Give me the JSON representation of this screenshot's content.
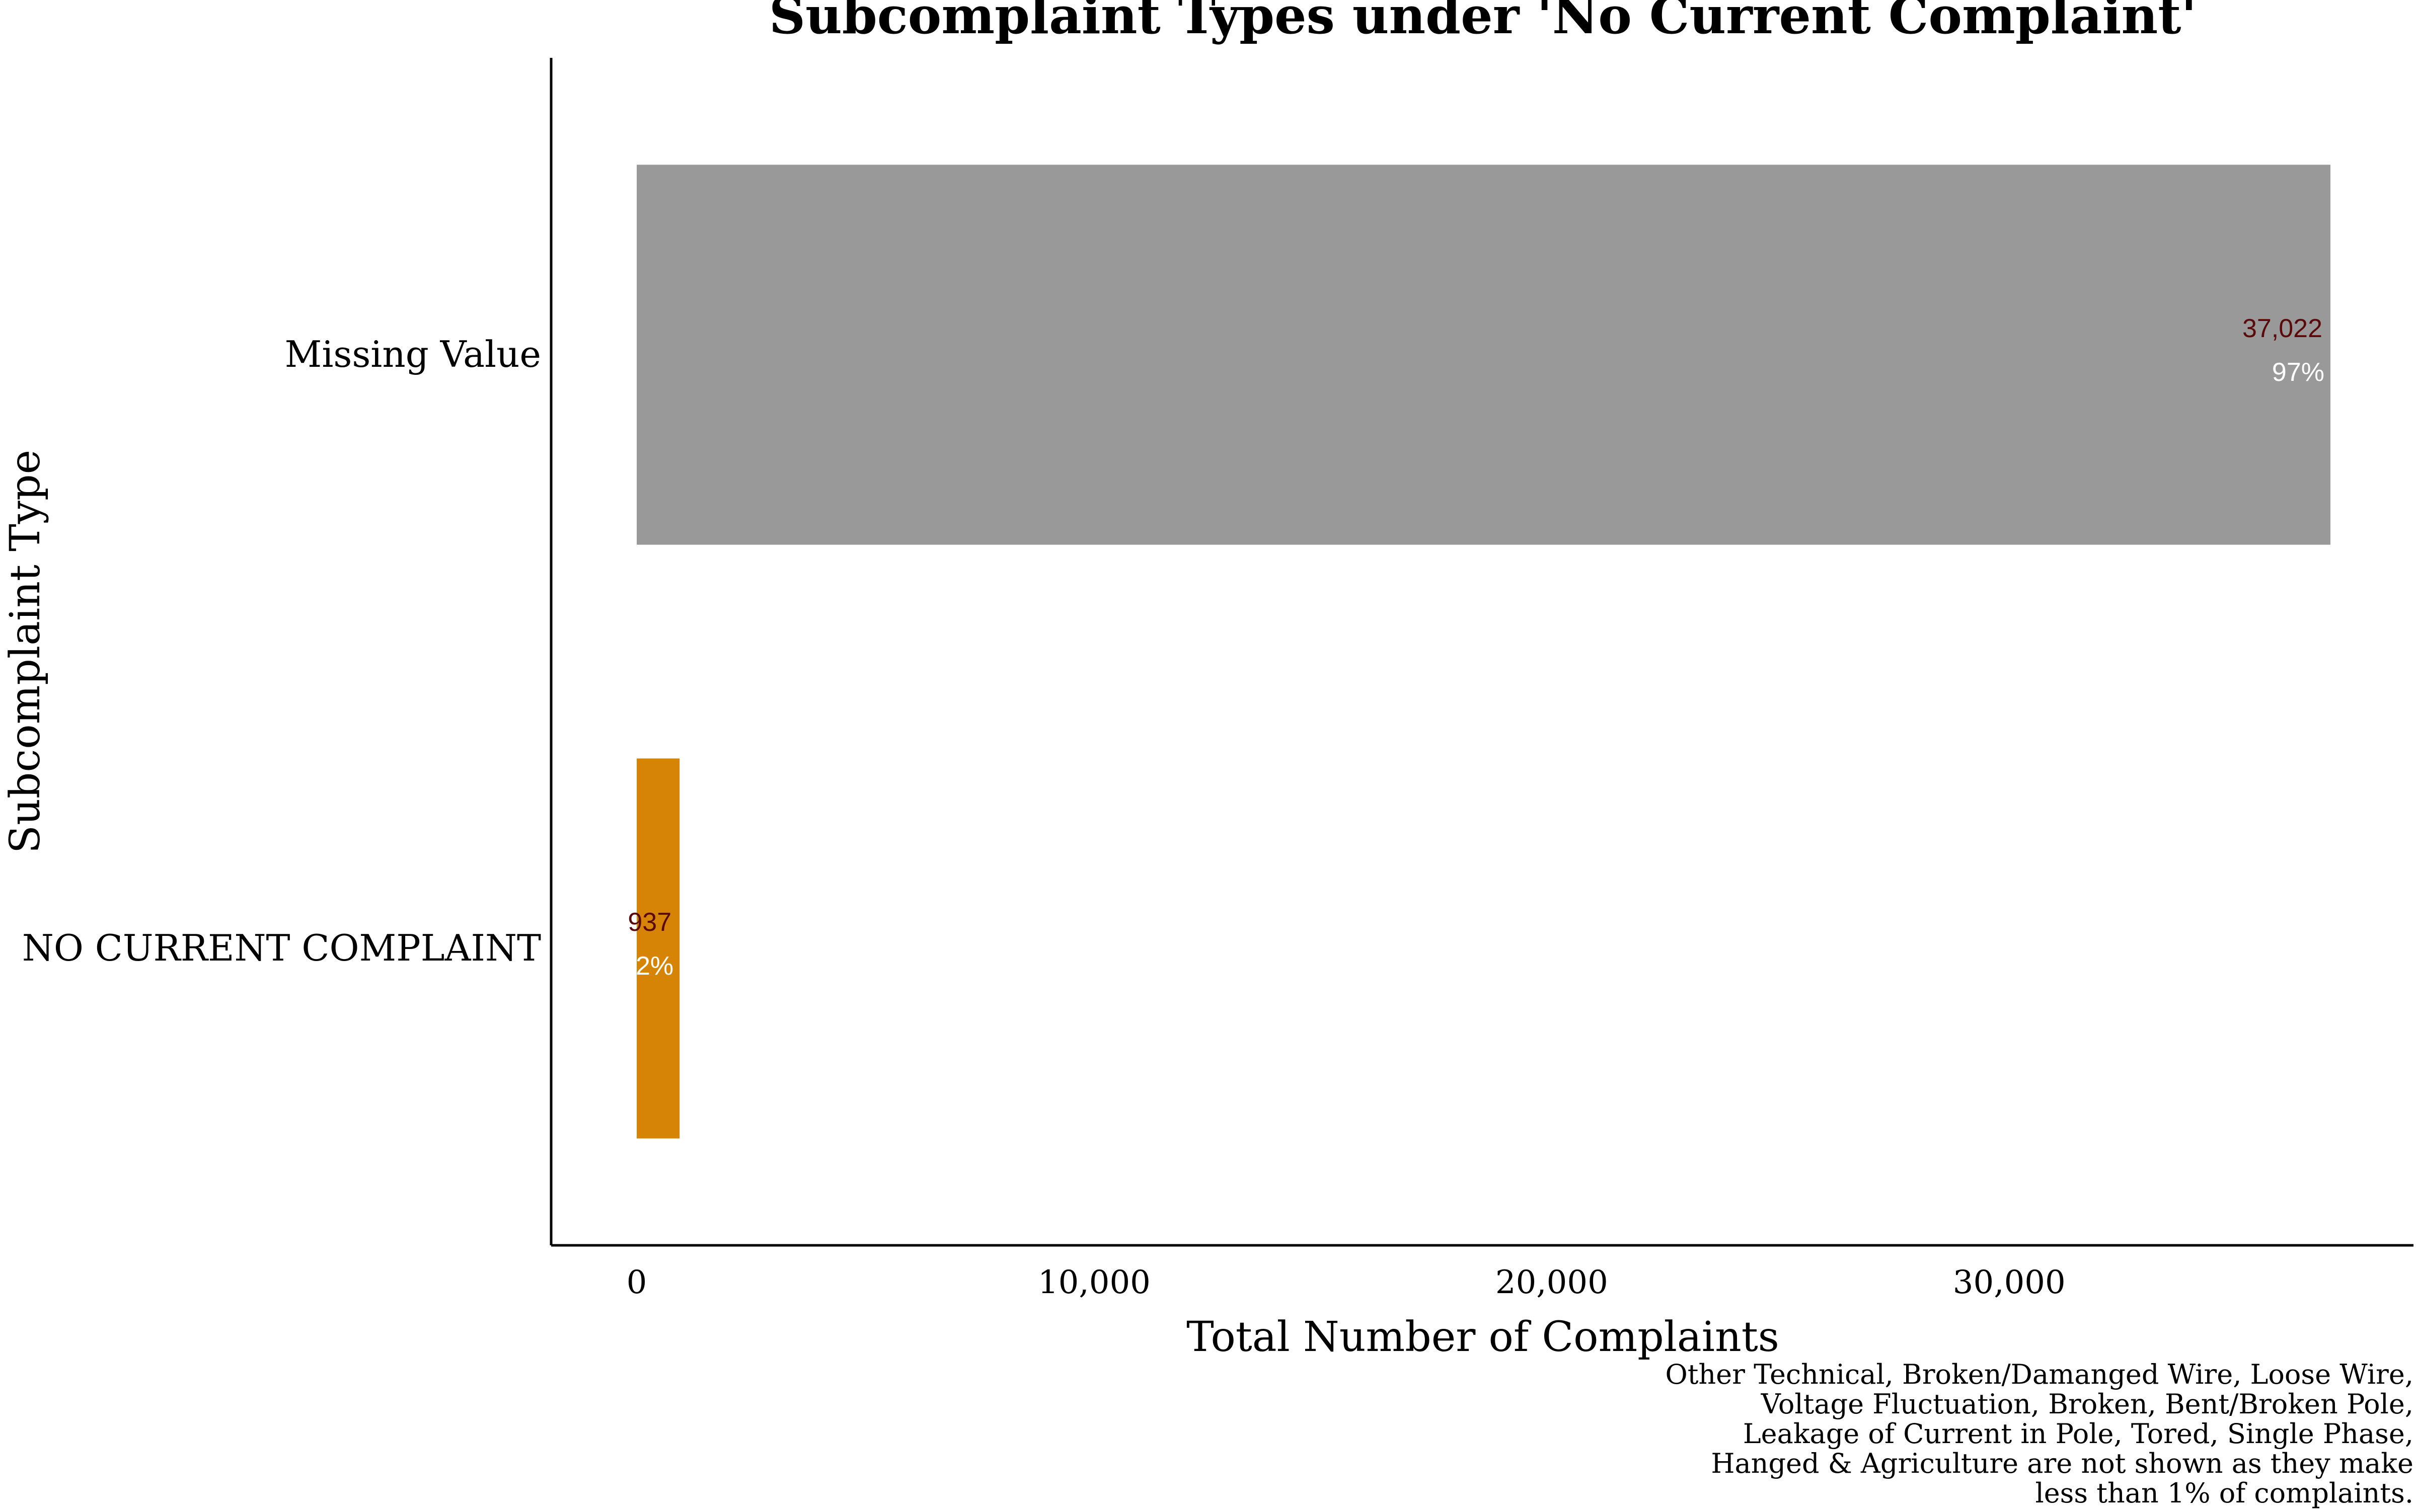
{
  "chart_data": {
    "type": "bar",
    "orientation": "horizontal",
    "title": "Subcomplaint Types under 'No Current Complaint'",
    "xlabel": "Total Number of Complaints",
    "ylabel": "Subcomplaint Type",
    "xlim": [
      0,
      37022
    ],
    "xticks": [
      0,
      10000,
      20000,
      30000
    ],
    "xtick_labels": [
      "0",
      "10,000",
      "20,000",
      "30,000"
    ],
    "grid": false,
    "legend": "none",
    "categories": [
      "Missing Value",
      "NO CURRENT COMPLAINT"
    ],
    "values": [
      37022,
      937
    ],
    "value_labels": [
      "37,022",
      "937"
    ],
    "percent_labels": [
      "97%",
      "2%"
    ],
    "colors": [
      "#999999",
      "#D68406"
    ],
    "caption": [
      "Other Technical, Broken/Damanged Wire, Loose Wire,",
      "Voltage Fluctuation, Broken, Bent/Broken Pole,",
      "Leakage of Current in Pole, Tored, Single Phase,",
      "Hanged & Agriculture are not shown as they make",
      "less than 1% of complaints."
    ]
  }
}
